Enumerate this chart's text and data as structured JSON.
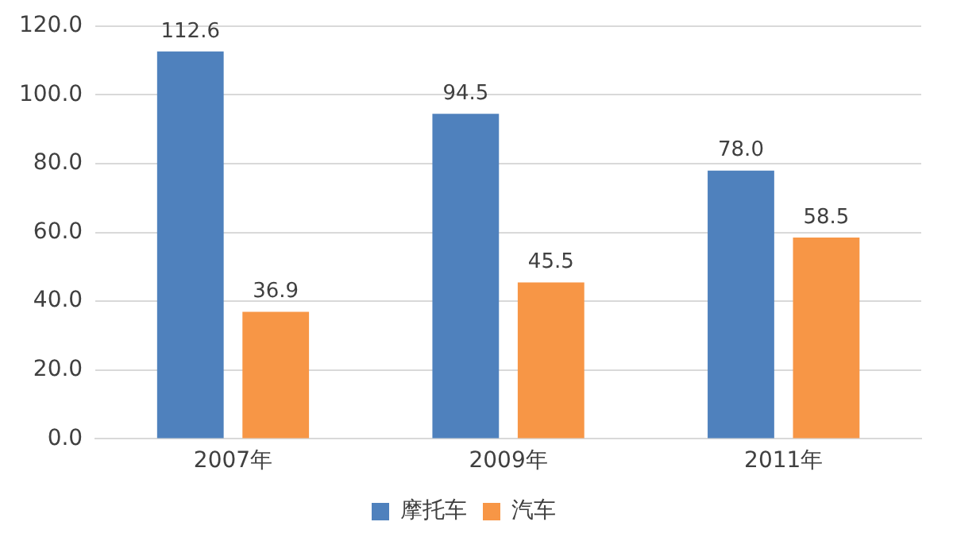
{
  "chart_data": {
    "type": "bar",
    "categories": [
      "2007年",
      "2009年",
      "2011年"
    ],
    "series": [
      {
        "name": "摩托车",
        "color": "#4f81bd",
        "values": [
          112.6,
          94.5,
          78.0
        ],
        "value_labels": [
          "112.6",
          "94.5",
          "78.0"
        ]
      },
      {
        "name": "汽车",
        "color": "#f79646",
        "values": [
          36.9,
          45.5,
          58.5
        ],
        "value_labels": [
          "36.9",
          "45.5",
          "58.5"
        ]
      }
    ],
    "ylim": [
      0,
      120
    ],
    "yticks": [
      {
        "value": 0,
        "label": "0.0"
      },
      {
        "value": 20,
        "label": "20.0"
      },
      {
        "value": 40,
        "label": "40.0"
      },
      {
        "value": 60,
        "label": "60.0"
      },
      {
        "value": 80,
        "label": "80.0"
      },
      {
        "value": 100,
        "label": "100.0"
      },
      {
        "value": 120,
        "label": "120.0"
      }
    ],
    "grid": "y",
    "legend": "bottom"
  }
}
